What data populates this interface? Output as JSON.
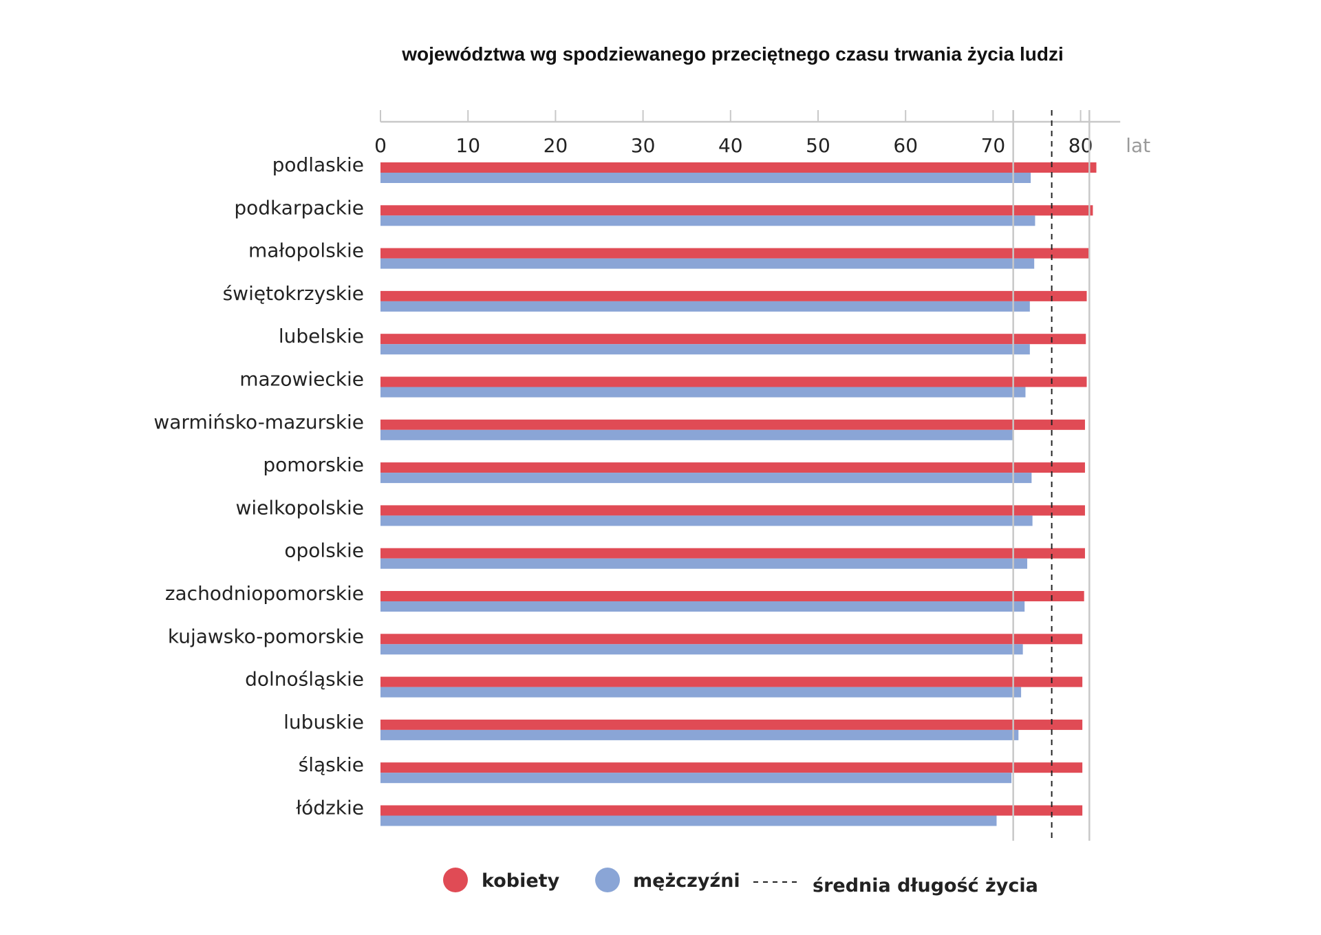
{
  "chart_data": {
    "type": "bar",
    "orientation": "horizontal",
    "title": "województwa wg spodziewanego przeciętnego czasu trwania życia ludzi",
    "unit_label": "lat",
    "x_ticks": [
      "0",
      "10",
      "20",
      "30",
      "40",
      "50",
      "60",
      "70",
      "80"
    ],
    "xlim": [
      0,
      85
    ],
    "reference_lines": [
      72.3,
      81
    ],
    "average_line": {
      "label": "średnia długość życia",
      "value": 76.7
    },
    "categories": [
      "podlaskie",
      "podkarpackie",
      "małopolskie",
      "świętokrzyskie",
      "lubelskie",
      "mazowieckie",
      "warmińsko-mazurskie",
      "pomorskie",
      "wielkopolskie",
      "opolskie",
      "zachodniopomorskie",
      "kujawsko-pomorskie",
      "dolnośląskie",
      "lubuskie",
      "śląskie",
      "łódzkie"
    ],
    "series": [
      {
        "name": "kobiety",
        "color": "#e04b55",
        "values": [
          81.8,
          81.4,
          80.9,
          80.7,
          80.6,
          80.7,
          80.5,
          80.5,
          80.5,
          80.5,
          80.4,
          80.2,
          80.2,
          80.2,
          80.2,
          80.2
        ]
      },
      {
        "name": "mężczyźni",
        "color": "#8aa5d6",
        "values": [
          74.3,
          74.8,
          74.7,
          74.2,
          74.2,
          73.7,
          72.3,
          74.4,
          74.5,
          73.9,
          73.6,
          73.4,
          73.2,
          72.9,
          72.1,
          70.4
        ]
      }
    ],
    "legend": {
      "position": "bottom",
      "items": [
        "kobiety",
        "mężczyźni",
        "średnia długość życia"
      ]
    },
    "colors": {
      "axis": "#c8c8c8",
      "gridline": "#c8c8c8",
      "average": "#222222",
      "unit": "#9a9a9a"
    }
  }
}
